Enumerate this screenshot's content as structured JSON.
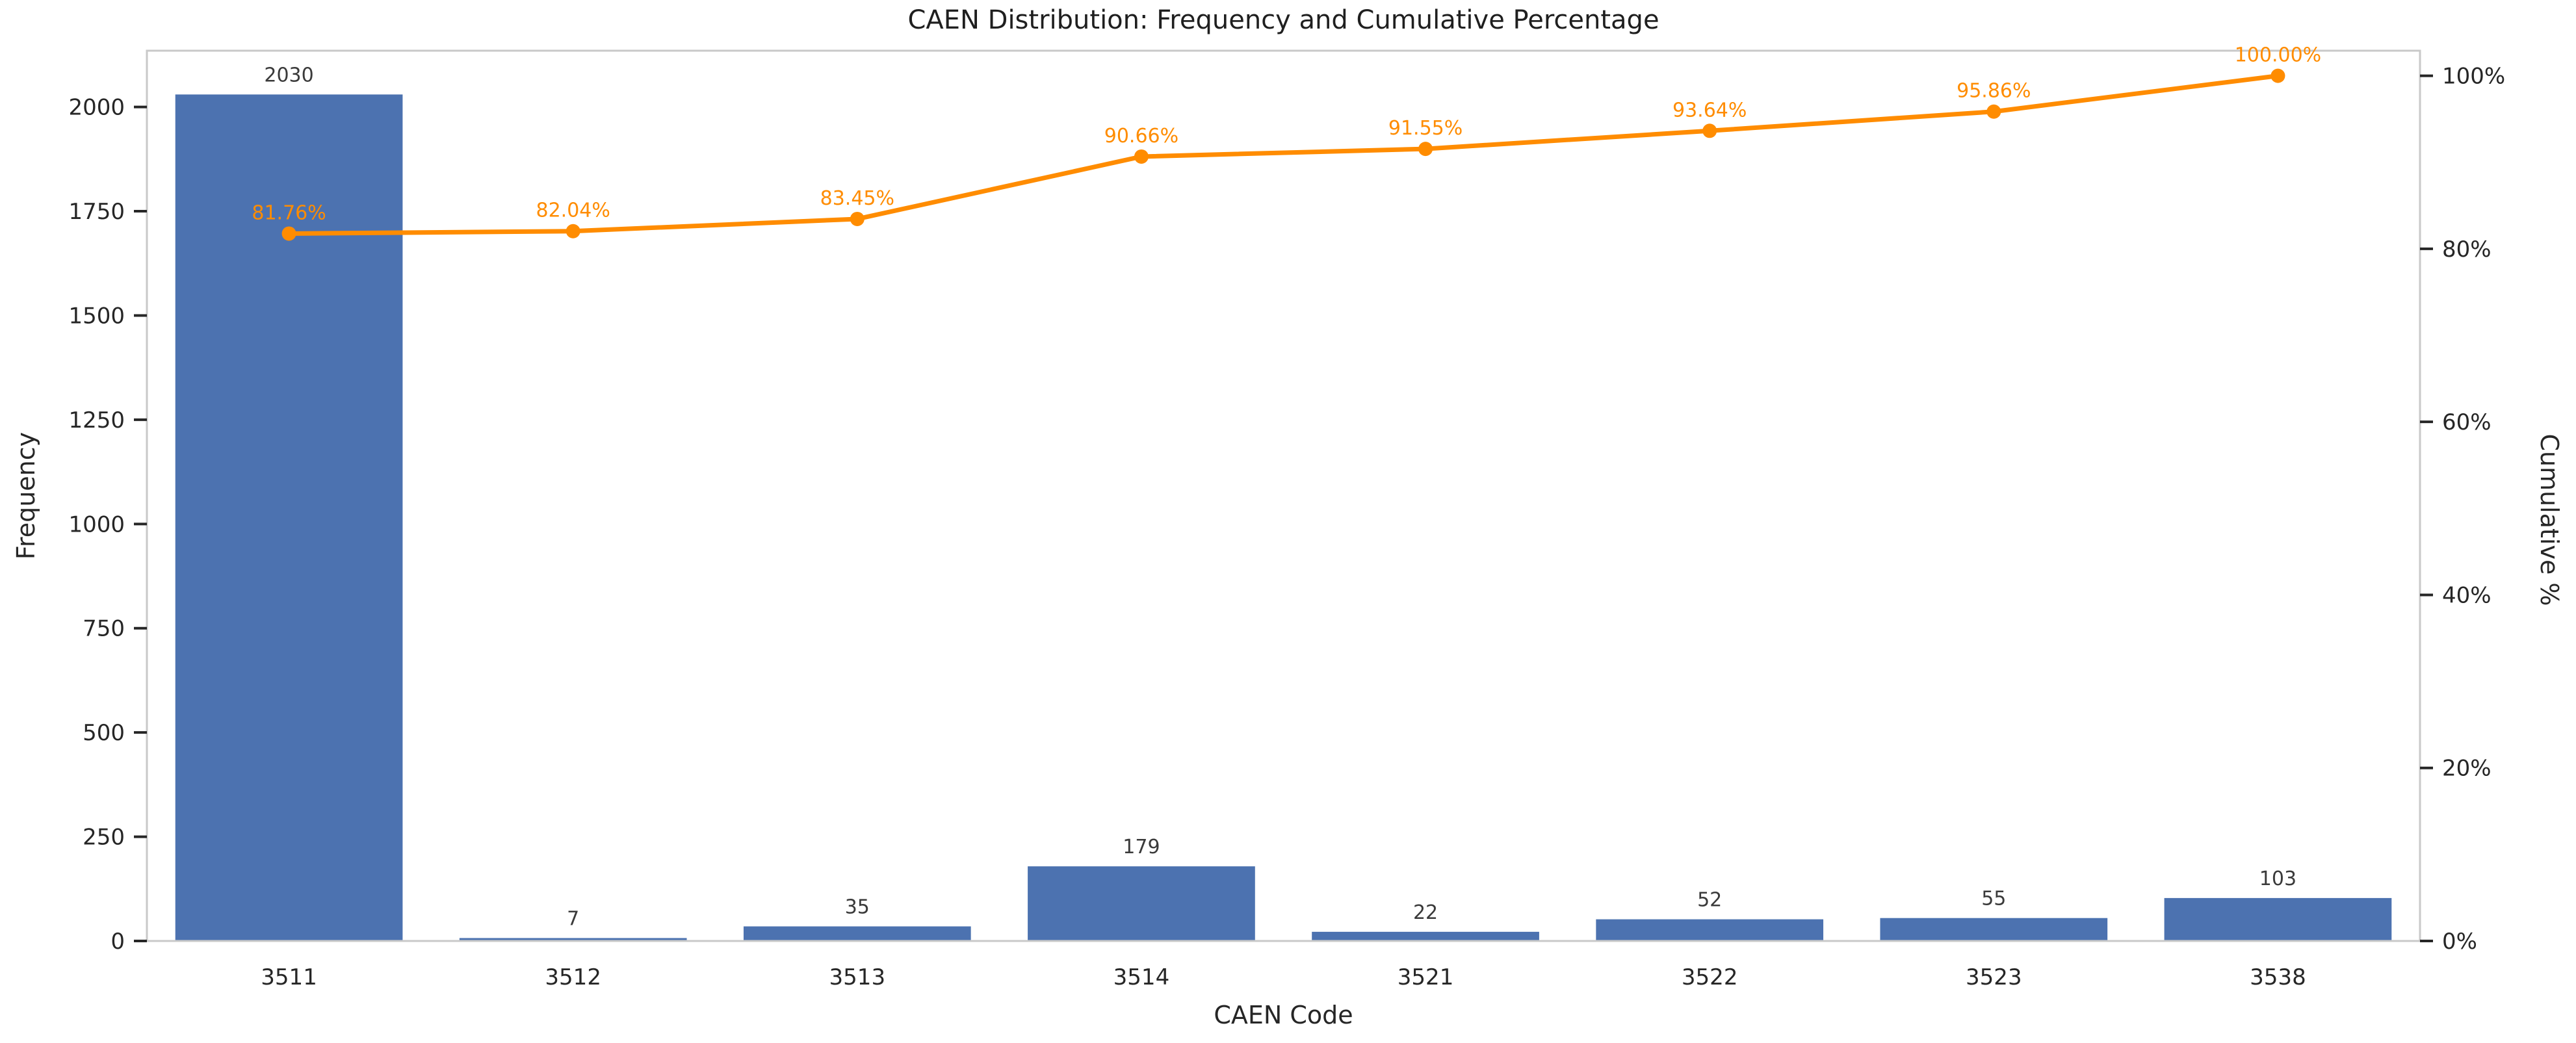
{
  "chart_data": {
    "type": "bar",
    "title": "CAEN Distribution: Frequency and Cumulative Percentage",
    "xlabel": "CAEN Code",
    "ylabel_left": "Frequency",
    "ylabel_right": "Cumulative %",
    "categories": [
      "3511",
      "3512",
      "3513",
      "3514",
      "3521",
      "3522",
      "3523",
      "3538"
    ],
    "series": [
      {
        "name": "Frequency",
        "type": "bar",
        "color": "#4c72b0",
        "values": [
          2030,
          7,
          35,
          179,
          22,
          52,
          55,
          103
        ],
        "value_labels": [
          "2030",
          "7",
          "35",
          "179",
          "22",
          "52",
          "55",
          "103"
        ]
      },
      {
        "name": "Cumulative %",
        "type": "line",
        "color": "#ff8c00",
        "values": [
          81.76,
          82.04,
          83.45,
          90.66,
          91.55,
          93.64,
          95.86,
          100.0
        ],
        "point_labels": [
          "81.76%",
          "82.04%",
          "83.45%",
          "90.66%",
          "91.55%",
          "93.64%",
          "95.86%",
          "100.00%"
        ]
      }
    ],
    "axes": {
      "left": {
        "ticks": [
          0,
          250,
          500,
          750,
          1000,
          1250,
          1500,
          1750,
          2000
        ],
        "tick_labels": [
          "0",
          "250",
          "500",
          "750",
          "1000",
          "1250",
          "1500",
          "1750",
          "2000"
        ],
        "range": [
          0,
          2135
        ]
      },
      "right": {
        "ticks": [
          0,
          20,
          40,
          60,
          80,
          100
        ],
        "tick_labels": [
          "0%",
          "20%",
          "40%",
          "60%",
          "80%",
          "100%"
        ],
        "range": [
          0,
          102.9
        ]
      }
    },
    "grid": false,
    "legend": "none",
    "colors": {
      "bar": "#4c72b0",
      "line": "#ff8c00",
      "spine": "#c9c9c9",
      "tick_mark": "#262626",
      "tick_text": "#262626",
      "bar_label_text": "#3a3a3a"
    }
  }
}
